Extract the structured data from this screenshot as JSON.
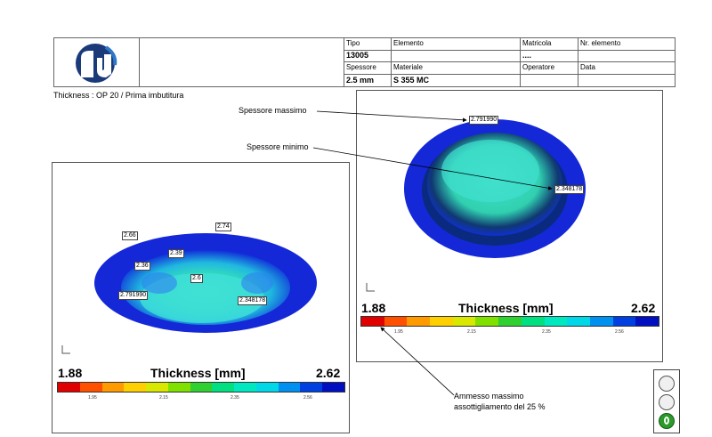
{
  "header": {
    "labels": {
      "tipo": "Tipo",
      "elemento": "Elemento",
      "matricola": "Matricola",
      "nr_elemento": "Nr. elemento",
      "spessore": "Spessore",
      "materiale": "Materiale",
      "operatore": "Operatore",
      "data": "Data"
    },
    "values": {
      "tipo": "13005",
      "matricola": "....",
      "spessore": "2.5 mm",
      "materiale": "S 355 MC"
    }
  },
  "caption": "Thickness : OP 20 / Prima imbutitura",
  "annotations": {
    "max_label": "Spessore massimo",
    "min_label": "Spessore minimo",
    "allowed_line1": "Ammesso massimo",
    "allowed_line2": "assottigliamento del 25 %"
  },
  "left_view": {
    "labels": [
      "2.66",
      "2.74",
      "2.39",
      "2.36",
      "2.6",
      "2.791990",
      "2.348178"
    ]
  },
  "right_view": {
    "labels": [
      "2.791990",
      "2.348178"
    ]
  },
  "scale": {
    "title": "Thickness [mm]",
    "min": "1.88",
    "max": "2.62",
    "ticks": [
      "1.95",
      "2.15",
      "2.35",
      "2.56"
    ],
    "colors": [
      "#e00000",
      "#ff5000",
      "#ff9a00",
      "#ffd000",
      "#d8e800",
      "#80e000",
      "#30d030",
      "#00e080",
      "#00e8c0",
      "#00d8e8",
      "#0090f0",
      "#0040e0",
      "#0010c0"
    ]
  },
  "traffic_light": {
    "status": "green",
    "icon": "traffic-light-icon"
  }
}
